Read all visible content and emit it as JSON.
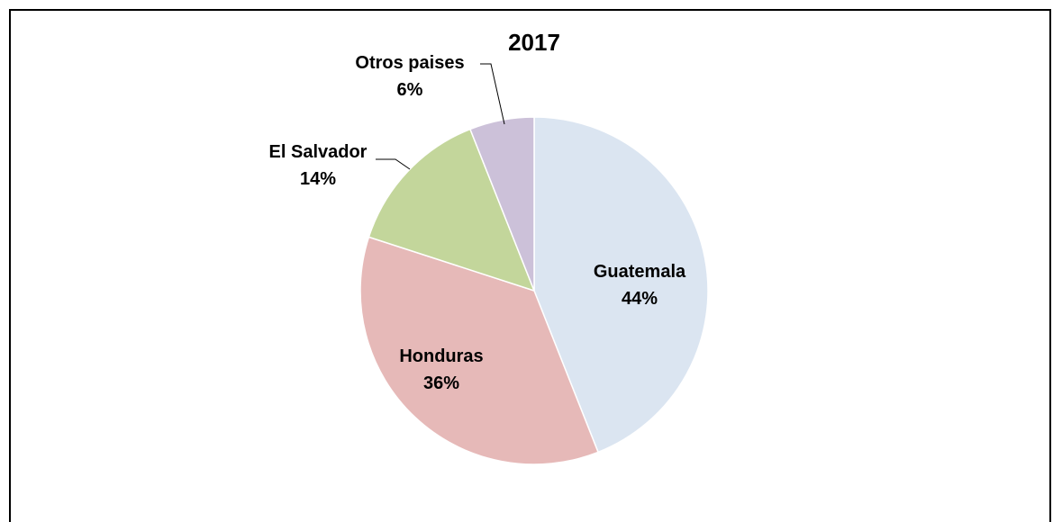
{
  "chart_data": {
    "type": "pie",
    "title": "2017",
    "slices": [
      {
        "label": "Guatemala",
        "value": 44,
        "display": "44%",
        "color": "#dbe5f1"
      },
      {
        "label": "Honduras",
        "value": 36,
        "display": "36%",
        "color": "#e6b9b8"
      },
      {
        "label": "El Salvador",
        "value": 14,
        "display": "14%",
        "color": "#c3d69b"
      },
      {
        "label": "Otros paises",
        "value": 6,
        "display": "6%",
        "color": "#ccc1d9"
      }
    ],
    "start_angle": "12 o'clock",
    "direction": "clockwise",
    "legend": "none",
    "labels": "category name and percentage"
  }
}
